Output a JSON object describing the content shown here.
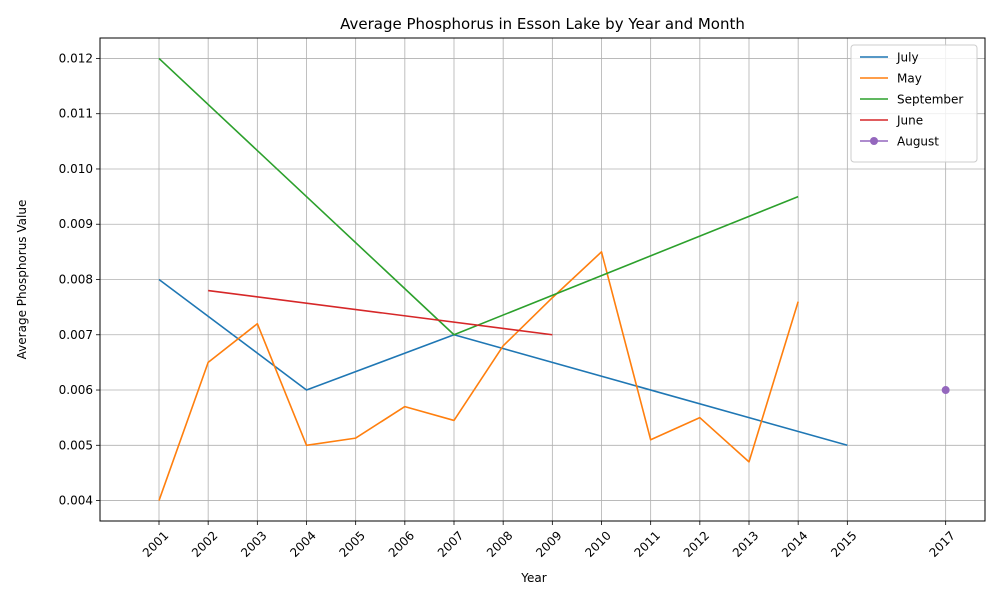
{
  "chart_data": {
    "type": "line",
    "title": "Average Phosphorus in Esson Lake by Year and Month",
    "xlabel": "Year",
    "ylabel": "Average Phosphorus Value",
    "xlim": [
      1999.8,
      2017.8
    ],
    "ylim": [
      0.00363,
      0.01237
    ],
    "xticks": [
      2001,
      2002,
      2003,
      2004,
      2005,
      2006,
      2007,
      2008,
      2009,
      2010,
      2011,
      2012,
      2013,
      2014,
      2015,
      2017
    ],
    "yticks": [
      0.004,
      0.005,
      0.006,
      0.007,
      0.008,
      0.009,
      0.01,
      0.011,
      0.012
    ],
    "ytick_labels": [
      "0.004",
      "0.005",
      "0.006",
      "0.007",
      "0.008",
      "0.009",
      "0.010",
      "0.011",
      "0.012"
    ],
    "grid": true,
    "legend_position": "top-right",
    "series": [
      {
        "name": "July",
        "color": "#1f77b4",
        "marker": "none",
        "x": [
          2001,
          2004,
          2007,
          2015
        ],
        "y": [
          0.008,
          0.006,
          0.007,
          0.005
        ]
      },
      {
        "name": "May",
        "color": "#ff7f0e",
        "marker": "none",
        "x": [
          2001,
          2002,
          2003,
          2004,
          2005,
          2006,
          2007,
          2008,
          2009,
          2010,
          2011,
          2012,
          2013,
          2014
        ],
        "y": [
          0.004,
          0.0065,
          0.0072,
          0.005,
          0.00513,
          0.0057,
          0.00545,
          0.0068,
          0.00767,
          0.0085,
          0.0051,
          0.0055,
          0.0047,
          0.0076
        ]
      },
      {
        "name": "September",
        "color": "#2ca02c",
        "marker": "none",
        "x": [
          2001,
          2007,
          2014
        ],
        "y": [
          0.012,
          0.007,
          0.0095
        ]
      },
      {
        "name": "June",
        "color": "#d62728",
        "marker": "none",
        "x": [
          2002,
          2009
        ],
        "y": [
          0.0078,
          0.007
        ]
      },
      {
        "name": "August",
        "color": "#9467bd",
        "marker": "circle",
        "x": [
          2017
        ],
        "y": [
          0.006
        ]
      }
    ]
  }
}
